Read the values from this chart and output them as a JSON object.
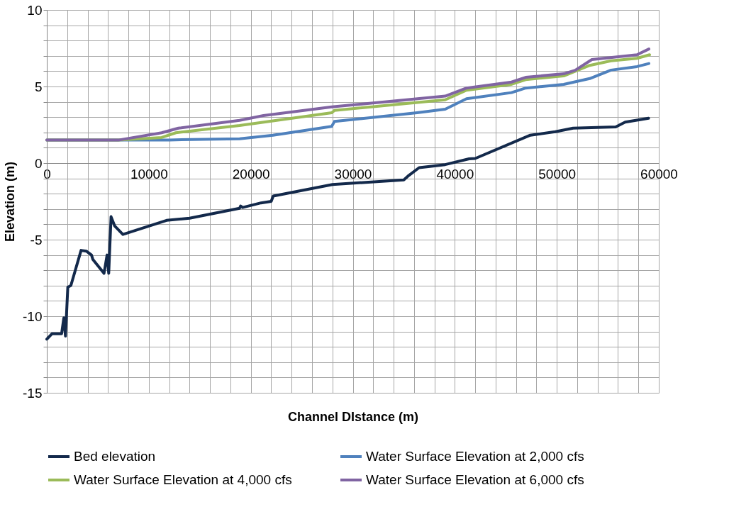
{
  "chart_data": {
    "type": "line",
    "xlabel": "Channel DIstance (m)",
    "ylabel": "Elevation (m)",
    "xlim": [
      0,
      60000
    ],
    "ylim": [
      -15,
      10
    ],
    "xticks": [
      0,
      {
        "value": 2000,
        "label": null
      },
      {
        "value": 4000,
        "label": null
      },
      {
        "value": 6000,
        "label": null
      },
      {
        "value": 8000,
        "label": null
      },
      10000,
      {
        "value": 12000,
        "label": null
      },
      {
        "value": 14000,
        "label": null
      },
      {
        "value": 16000,
        "label": null
      },
      {
        "value": 18000,
        "label": null
      },
      20000,
      {
        "value": 22000,
        "label": null
      },
      {
        "value": 24000,
        "label": null
      },
      {
        "value": 26000,
        "label": null
      },
      {
        "value": 28000,
        "label": null
      },
      30000,
      {
        "value": 32000,
        "label": null
      },
      {
        "value": 34000,
        "label": null
      },
      {
        "value": 36000,
        "label": null
      },
      {
        "value": 38000,
        "label": null
      },
      40000,
      {
        "value": 42000,
        "label": null
      },
      {
        "value": 44000,
        "label": null
      },
      {
        "value": 46000,
        "label": null
      },
      {
        "value": 48000,
        "label": null
      },
      50000,
      {
        "value": 52000,
        "label": null
      },
      {
        "value": 54000,
        "label": null
      },
      {
        "value": 56000,
        "label": null
      },
      {
        "value": 58000,
        "label": null
      },
      60000
    ],
    "yticks": [
      -15,
      {
        "value": -14,
        "label": null
      },
      {
        "value": -13,
        "label": null
      },
      {
        "value": -12,
        "label": null
      },
      {
        "value": -11,
        "label": null
      },
      -10,
      {
        "value": -9,
        "label": null
      },
      {
        "value": -8,
        "label": null
      },
      {
        "value": -7,
        "label": null
      },
      {
        "value": -6,
        "label": null
      },
      -5,
      {
        "value": -4,
        "label": null
      },
      {
        "value": -3,
        "label": null
      },
      {
        "value": -2,
        "label": null
      },
      {
        "value": -1,
        "label": null
      },
      0,
      {
        "value": 1,
        "label": null
      },
      {
        "value": 2,
        "label": null
      },
      {
        "value": 3,
        "label": null
      },
      {
        "value": 4,
        "label": null
      },
      5,
      {
        "value": 6,
        "label": null
      },
      {
        "value": 7,
        "label": null
      },
      {
        "value": 8,
        "label": null
      },
      {
        "value": 9,
        "label": null
      },
      10
    ],
    "grid": true,
    "legend": "bottom",
    "marker": "none",
    "line_style": "solid",
    "series": [
      {
        "name": "Bed elevation",
        "color": "#13294b",
        "x": [
          0,
          500,
          1450,
          1670,
          1830,
          2060,
          2360,
          3360,
          3870,
          4380,
          4520,
          5610,
          5910,
          6070,
          6300,
          6650,
          7460,
          11740,
          14000,
          18900,
          19000,
          19200,
          21000,
          22000,
          22200,
          28000,
          35000,
          35500,
          36500,
          39060,
          41400,
          42000,
          47400,
          49860,
          51600,
          55780,
          56700,
          59000
        ],
        "values": [
          -11.5,
          -11.15,
          -11.15,
          -10.1,
          -11.3,
          -8.1,
          -8.0,
          -5.7,
          -5.75,
          -6.0,
          -6.3,
          -7.2,
          -6.0,
          -7.2,
          -3.5,
          -4.1,
          -4.66,
          -3.74,
          -3.6,
          -2.95,
          -2.8,
          -2.9,
          -2.6,
          -2.5,
          -2.15,
          -1.4,
          -1.1,
          -0.8,
          -0.3,
          -0.1,
          0.28,
          0.3,
          1.82,
          2.05,
          2.28,
          2.36,
          2.67,
          2.93
        ]
      },
      {
        "name": "Water Surface Elevation at 2,000 cfs",
        "color": "#4f81bd",
        "x": [
          0,
          7000,
          12000,
          18900,
          22170,
          27940,
          28200,
          36300,
          39060,
          41150,
          45560,
          46950,
          50680,
          53230,
          55320,
          57860,
          59030
        ],
        "values": [
          1.5,
          1.5,
          1.51,
          1.59,
          1.82,
          2.4,
          2.72,
          3.29,
          3.52,
          4.2,
          4.6,
          4.9,
          5.14,
          5.52,
          6.07,
          6.3,
          6.5
        ]
      },
      {
        "name": "Water Surface Elevation at 4,000 cfs",
        "color": "#9bbb59",
        "x": [
          0,
          7000,
          11260,
          12650,
          18900,
          27940,
          28200,
          39060,
          41150,
          45560,
          46950,
          50680,
          53230,
          55320,
          57860,
          59100
        ],
        "values": [
          1.5,
          1.5,
          1.67,
          1.98,
          2.45,
          3.29,
          3.44,
          4.13,
          4.76,
          5.14,
          5.45,
          5.69,
          6.38,
          6.68,
          6.84,
          7.07
        ]
      },
      {
        "name": "Water Surface Elevation at 6,000 cfs",
        "color": "#8064a2",
        "x": [
          0,
          7000,
          11260,
          12900,
          18900,
          21240,
          27940,
          39060,
          41150,
          45560,
          46950,
          50680,
          51800,
          53440,
          57860,
          59030
        ],
        "values": [
          1.5,
          1.5,
          1.98,
          2.28,
          2.79,
          3.1,
          3.67,
          4.37,
          4.9,
          5.29,
          5.6,
          5.83,
          6.06,
          6.76,
          7.07,
          7.45
        ]
      }
    ]
  }
}
